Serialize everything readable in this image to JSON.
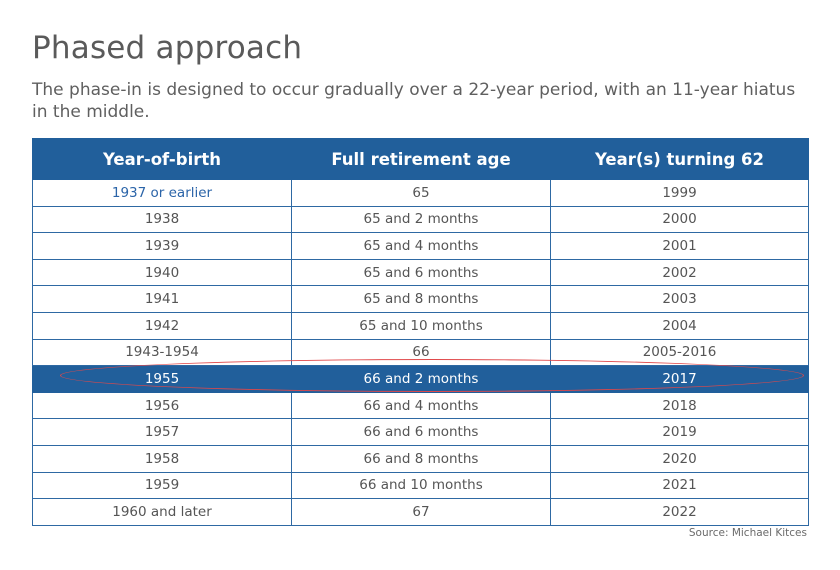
{
  "title": "Phased approach",
  "subtitle": "The phase-in is designed to occur gradually over a 22-year period, with an 11-year hiatus in the middle.",
  "table": {
    "headers": [
      "Year-of-birth",
      "Full retirement age",
      "Year(s) turning 62"
    ],
    "rows": [
      [
        "1937 or earlier",
        "65",
        "1999"
      ],
      [
        "1938",
        "65 and 2 months",
        "2000"
      ],
      [
        "1939",
        "65 and 4 months",
        "2001"
      ],
      [
        "1940",
        "65 and 6 months",
        "2002"
      ],
      [
        "1941",
        "65 and 8 months",
        "2003"
      ],
      [
        "1942",
        "65 and 10 months",
        "2004"
      ],
      [
        "1943-1954",
        "66",
        "2005-2016"
      ],
      [
        "1955",
        "66 and 2 months",
        "2017"
      ],
      [
        "1956",
        "66 and 4 months",
        "2018"
      ],
      [
        "1957",
        "66 and 6 months",
        "2019"
      ],
      [
        "1958",
        "66 and 8 months",
        "2020"
      ],
      [
        "1959",
        "66 and 10 months",
        "2021"
      ],
      [
        "1960 and later",
        "67",
        "2022"
      ]
    ],
    "highlighted_row": "1955"
  },
  "source": "Source: Michael Kitces",
  "colors": {
    "header_bg": "#215f9b",
    "highlight_bg": "#215f9b",
    "oval": "#e0484a",
    "title": "#5a5a5a"
  }
}
